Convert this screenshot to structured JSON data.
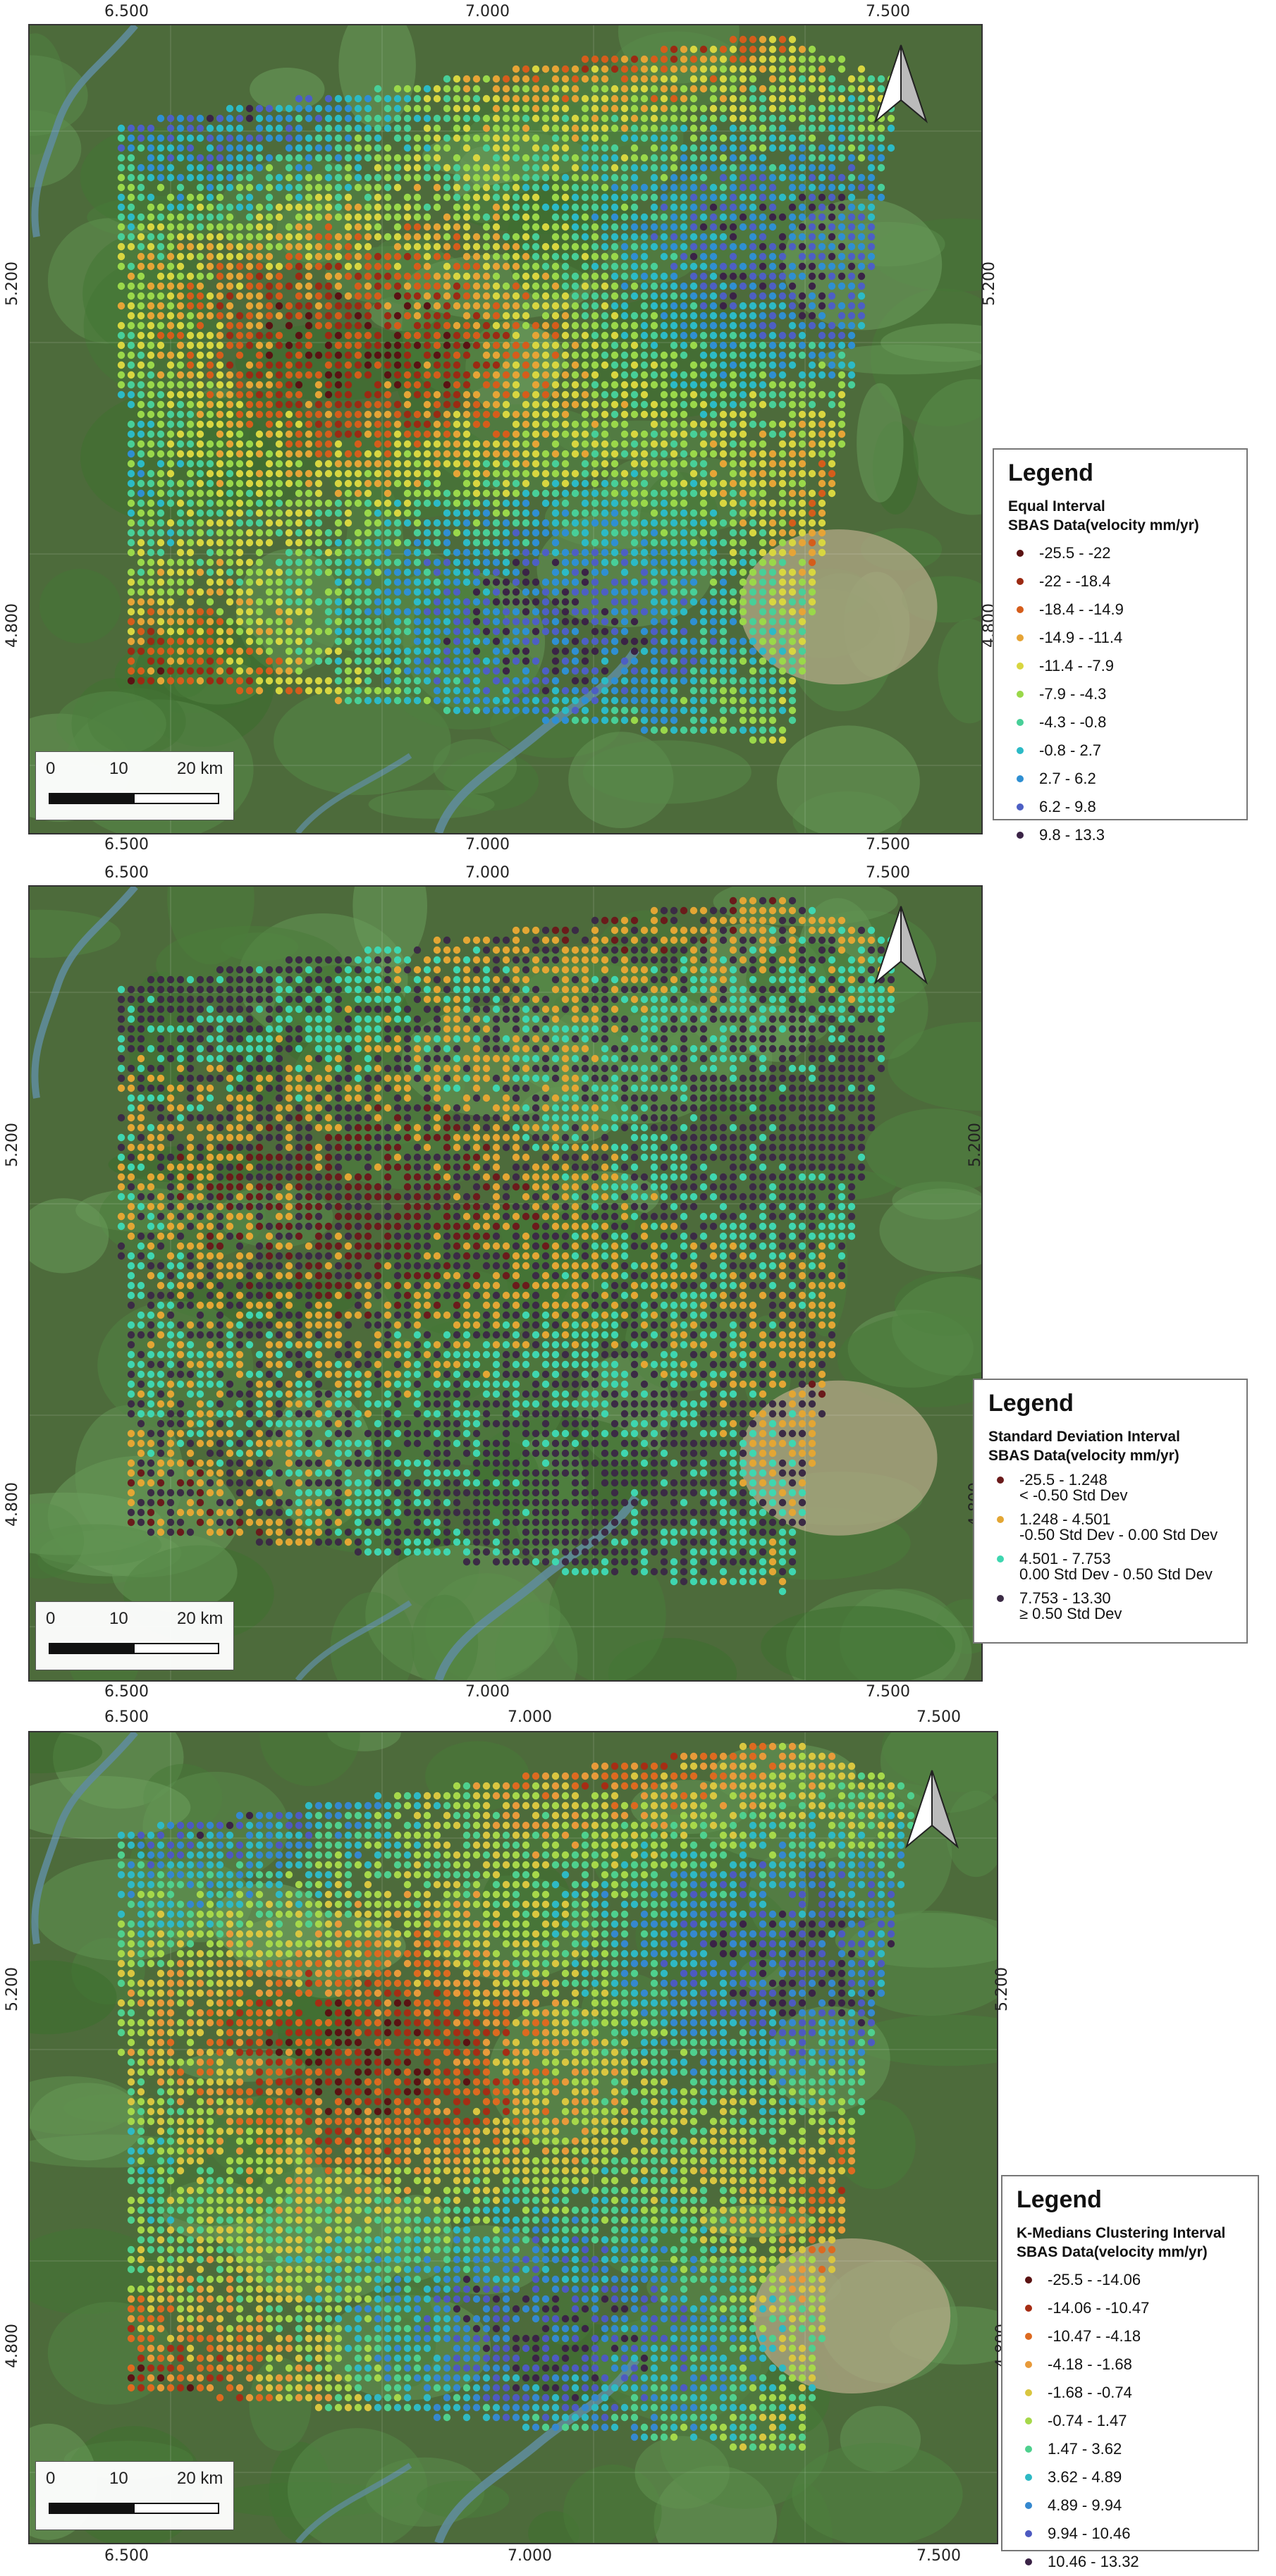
{
  "maps": [
    {
      "legend_title": "Legend",
      "classification": "Equal Interval",
      "layer": "SBAS Data(velocity mm/yr)",
      "classes": [
        {
          "label": "-25.5 - -22",
          "color": "#5a1212"
        },
        {
          "label": "-22 - -18.4",
          "color": "#9b2a12"
        },
        {
          "label": "-18.4 - -14.9",
          "color": "#d55d1b"
        },
        {
          "label": "-14.9 - -11.4",
          "color": "#e6a436"
        },
        {
          "label": "-11.4 - -7.9",
          "color": "#d8d640"
        },
        {
          "label": "-7.9 - -4.3",
          "color": "#9ad84a"
        },
        {
          "label": "-4.3 - -0.8",
          "color": "#48cf98"
        },
        {
          "label": "-0.8 - 2.7",
          "color": "#2cbac6"
        },
        {
          "label": "2.7 - 6.2",
          "color": "#2f8fd2"
        },
        {
          "label": "6.2 - 9.8",
          "color": "#4d5fc4"
        },
        {
          "label": "9.8 - 13.3",
          "color": "#3a2346"
        }
      ],
      "x_ticks_top": [
        "6.500",
        "7.000",
        "7.500"
      ],
      "x_ticks_bottom": [
        "6.500",
        "7.000",
        "7.500"
      ],
      "y_ticks": [
        "5.200",
        "4.800"
      ],
      "scale_labels": [
        "0",
        "10",
        "20 km"
      ]
    },
    {
      "legend_title": "Legend",
      "classification": "Standard Deviation Interval",
      "layer": "SBAS Data(velocity mm/yr)",
      "classes": [
        {
          "label": "-25.5 - 1.248",
          "label2": "<  -0.50 Std Dev",
          "color": "#6a1b1b"
        },
        {
          "label": "1.248 - 4.501",
          "label2": "-0.50 Std Dev -  0.00 Std Dev",
          "color": "#e3a634"
        },
        {
          "label": "4.501 - 7.753",
          "label2": "0.00 Std Dev -  0.50 Std Dev",
          "color": "#3fd6b0"
        },
        {
          "label": "7.753 - 13.30",
          "label2": "≥  0.50 Std Dev",
          "color": "#3b2b45"
        }
      ],
      "x_ticks_top": [
        "6.500",
        "7.000",
        "7.500"
      ],
      "x_ticks_bottom": [
        "6.500",
        "7.000",
        "7.500"
      ],
      "y_ticks": [
        "5.200",
        "4.800"
      ],
      "scale_labels": [
        "0",
        "10",
        "20 km"
      ]
    },
    {
      "legend_title": "Legend",
      "classification": "K-Medians Clustering Interval",
      "layer": "SBAS Data(velocity mm/yr)",
      "classes": [
        {
          "label": "-25.5 - -14.06",
          "color": "#5a1212"
        },
        {
          "label": "-14.06 - -10.47",
          "color": "#a52d14"
        },
        {
          "label": "-10.47 - -4.18",
          "color": "#dd6a20"
        },
        {
          "label": "-4.18 - -1.68",
          "color": "#e89a3a"
        },
        {
          "label": "-1.68 - -0.74",
          "color": "#d9c640"
        },
        {
          "label": "-0.74 - 1.47",
          "color": "#a6d84a"
        },
        {
          "label": "1.47 - 3.62",
          "color": "#4fd08e"
        },
        {
          "label": "3.62 - 4.89",
          "color": "#2fb9c4"
        },
        {
          "label": "4.89 - 9.94",
          "color": "#3588cf"
        },
        {
          "label": "9.94 - 10.46",
          "color": "#4d5ac0"
        },
        {
          "label": "10.46 - 13.32",
          "color": "#3a2346"
        }
      ],
      "x_ticks_top": [
        "6.500",
        "7.000",
        "7.500"
      ],
      "x_ticks_bottom": [
        "6.500",
        "7.000",
        "7.500"
      ],
      "y_ticks": [
        "5.200",
        "4.800"
      ],
      "scale_labels": [
        "0",
        "10",
        "20 km"
      ]
    }
  ]
}
